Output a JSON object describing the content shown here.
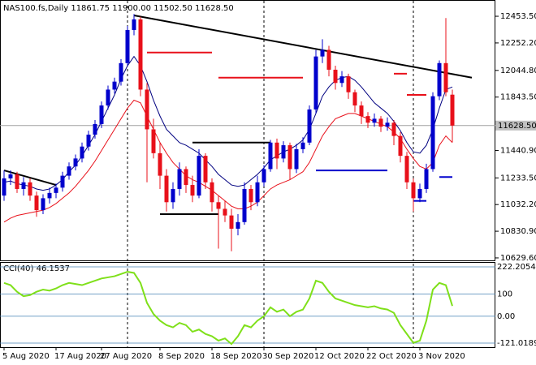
{
  "chart_data": {
    "type": "candlestick",
    "header": "NAS100.fs,Daily  11861.75 11900.00 11502.50 11628.50",
    "categories": [
      "5 Aug 2020",
      null,
      null,
      null,
      null,
      null,
      null,
      null,
      "17 Aug 2020",
      null,
      null,
      null,
      null,
      null,
      null,
      "27 Aug 2020",
      null,
      null,
      null,
      null,
      null,
      null,
      null,
      null,
      "8 Sep 2020",
      null,
      null,
      null,
      null,
      null,
      null,
      null,
      "18 Sep 2020",
      null,
      null,
      null,
      null,
      null,
      null,
      null,
      "30 Sep 2020",
      null,
      null,
      null,
      null,
      null,
      null,
      null,
      "12 Oct 2020",
      null,
      null,
      null,
      null,
      null,
      null,
      null,
      "22 Oct 2020",
      null,
      null,
      null,
      null,
      null,
      null,
      null,
      "3 Nov 2020",
      null,
      null,
      null,
      null,
      null
    ],
    "open": [
      11100,
      11230,
      11260,
      11150,
      11200,
      11100,
      10990,
      11080,
      11120,
      11160,
      11250,
      11320,
      11380,
      11470,
      11560,
      11640,
      11780,
      11900,
      11960,
      12100,
      12350,
      12430,
      11900,
      11600,
      11420,
      11250,
      11050,
      11150,
      11300,
      11180,
      11100,
      11400,
      11200,
      11050,
      11000,
      10950,
      10850,
      10900,
      11150,
      11050,
      11200,
      11300,
      11500,
      11380,
      11480,
      11300,
      11450,
      11500,
      11750,
      12150,
      12200,
      12050,
      11950,
      12000,
      11880,
      11780,
      11700,
      11650,
      11680,
      11620,
      11650,
      11550,
      11400,
      11200,
      11080,
      11150,
      11300,
      11850,
      12100,
      11861.75
    ],
    "high": [
      11290,
      11290,
      11280,
      11240,
      11230,
      11130,
      11110,
      11160,
      11190,
      11280,
      11350,
      11410,
      11500,
      11590,
      11670,
      11810,
      11930,
      11990,
      12130,
      12380,
      12470,
      12450,
      11950,
      11680,
      11500,
      11300,
      11200,
      11350,
      11320,
      11250,
      11450,
      11420,
      11230,
      11100,
      11060,
      11000,
      10960,
      11200,
      11180,
      11250,
      11330,
      11520,
      11530,
      11510,
      11500,
      11490,
      11540,
      11780,
      12200,
      12280,
      12230,
      12080,
      12040,
      12020,
      11900,
      11810,
      11730,
      11720,
      11700,
      11690,
      11670,
      11580,
      11430,
      11230,
      11190,
      11340,
      11880,
      12120,
      12440,
      11900
    ],
    "low": [
      11060,
      11180,
      11120,
      11100,
      11060,
      10940,
      10960,
      11040,
      11080,
      11130,
      11220,
      11290,
      11350,
      11440,
      11530,
      11610,
      11750,
      11870,
      11930,
      12080,
      12310,
      11850,
      11200,
      11380,
      11150,
      10980,
      11000,
      11100,
      11120,
      11050,
      11080,
      11150,
      10980,
      10700,
      10900,
      10680,
      10800,
      10880,
      10990,
      11020,
      11170,
      11280,
      11300,
      11350,
      11220,
      11270,
      11420,
      11480,
      11720,
      12100,
      12000,
      11900,
      11920,
      11830,
      11730,
      11640,
      11610,
      11620,
      11580,
      11590,
      11480,
      11350,
      11150,
      10980,
      11050,
      11120,
      11280,
      11820,
      11850,
      11502.5
    ],
    "close": [
      11230,
      11260,
      11150,
      11200,
      11100,
      10990,
      11080,
      11120,
      11160,
      11250,
      11320,
      11380,
      11470,
      11560,
      11640,
      11780,
      11900,
      11960,
      12100,
      12350,
      12430,
      11900,
      11600,
      11420,
      11250,
      11050,
      11150,
      11300,
      11180,
      11100,
      11400,
      11200,
      11050,
      11000,
      10950,
      10850,
      10900,
      11150,
      11050,
      11200,
      11300,
      11500,
      11380,
      11480,
      11300,
      11450,
      11500,
      11750,
      12150,
      12200,
      12050,
      11950,
      12000,
      11880,
      11780,
      11700,
      11650,
      11680,
      11620,
      11650,
      11550,
      11400,
      11200,
      11080,
      11150,
      11300,
      11850,
      12100,
      11880,
      11628.5
    ],
    "up_color": "#0000cc",
    "down_color": "#e8101a",
    "overlays": [
      {
        "color": "#000080",
        "values": [
          11200,
          11210,
          11190,
          11180,
          11170,
          11150,
          11140,
          11150,
          11180,
          11220,
          11280,
          11330,
          11400,
          11480,
          11560,
          11660,
          11760,
          11860,
          11980,
          12080,
          12150,
          12080,
          11960,
          11820,
          11700,
          11600,
          11550,
          11500,
          11480,
          11450,
          11420,
          11370,
          11320,
          11260,
          11220,
          11180,
          11170,
          11180,
          11220,
          11260,
          11310,
          11370,
          11400,
          11430,
          11450,
          11480,
          11520,
          11600,
          11720,
          11850,
          11920,
          11970,
          11990,
          12000,
          11970,
          11920,
          11860,
          11800,
          11760,
          11720,
          11660,
          11590,
          11500,
          11430,
          11420,
          11480,
          11600,
          11760,
          11900,
          11920
        ]
      },
      {
        "color": "#e8101a",
        "values": [
          10900,
          10930,
          10950,
          10960,
          10970,
          10980,
          10990,
          11010,
          11040,
          11080,
          11120,
          11170,
          11230,
          11290,
          11360,
          11440,
          11520,
          11600,
          11680,
          11760,
          11820,
          11800,
          11700,
          11600,
          11500,
          11420,
          11350,
          11300,
          11250,
          11220,
          11200,
          11170,
          11140,
          11100,
          11060,
          11020,
          11000,
          11000,
          11020,
          11050,
          11100,
          11150,
          11180,
          11200,
          11220,
          11250,
          11280,
          11350,
          11450,
          11550,
          11620,
          11680,
          11700,
          11720,
          11720,
          11700,
          11680,
          11660,
          11640,
          11620,
          11580,
          11530,
          11450,
          11380,
          11320,
          11300,
          11350,
          11480,
          11550,
          11500
        ]
      }
    ],
    "lines": [
      {
        "color": "#000000",
        "x": [
          20,
          72
        ],
        "values": [
          12460,
          11990
        ]
      },
      {
        "color": "#000000",
        "x": [
          0,
          8
        ],
        "values": [
          11290,
          11180
        ]
      },
      {
        "color": "#000000",
        "x": [
          29,
          41
        ],
        "values": [
          11500,
          11500
        ]
      },
      {
        "color": "#000000",
        "x": [
          24,
          33
        ],
        "values": [
          10960,
          10960
        ]
      },
      {
        "color": "#e8101a",
        "x": [
          22,
          32
        ],
        "values": [
          12180,
          12180
        ]
      },
      {
        "color": "#e8101a",
        "x": [
          33,
          46
        ],
        "values": [
          11990,
          11990
        ]
      },
      {
        "color": "#e8101a",
        "x": [
          60,
          62
        ],
        "values": [
          12020,
          12020
        ]
      },
      {
        "color": "#e8101a",
        "x": [
          62,
          65
        ],
        "values": [
          11860,
          11860
        ]
      },
      {
        "color": "#0000cc",
        "x": [
          48,
          59
        ],
        "values": [
          11290,
          11290
        ]
      },
      {
        "color": "#0000cc",
        "x": [
          63,
          65
        ],
        "values": [
          11060,
          11060
        ]
      },
      {
        "color": "#0000cc",
        "x": [
          67,
          69
        ],
        "values": [
          11240,
          11240
        ]
      }
    ],
    "separators": [
      19,
      40,
      63
    ],
    "ylim": [
      10611,
      12564
    ],
    "yticks": [
      {
        "value": 12453.5,
        "label": "12453.50"
      },
      {
        "value": 12252.2,
        "label": "12252.20"
      },
      {
        "value": 12044.8,
        "label": "12044.80"
      },
      {
        "value": 11843.5,
        "label": "11843.50"
      },
      {
        "value": 11440.9,
        "label": "11440.90"
      },
      {
        "value": 11233.5,
        "label": "11233.50"
      },
      {
        "value": 11032.2,
        "label": "11032.20"
      },
      {
        "value": 10830.9,
        "label": "10830.90"
      },
      {
        "value": 10629.6,
        "label": "10629.60"
      }
    ],
    "last_price": {
      "value": 11628.5,
      "label": "11628.50"
    },
    "cci": {
      "title": "CCI(40) 46.1537",
      "color": "#7fe01a",
      "values": [
        150,
        140,
        110,
        90,
        95,
        110,
        120,
        115,
        125,
        140,
        150,
        145,
        140,
        150,
        160,
        170,
        175,
        180,
        190,
        200,
        195,
        150,
        60,
        10,
        -20,
        -40,
        -50,
        -30,
        -40,
        -70,
        -60,
        -80,
        -90,
        -110,
        -100,
        -125,
        -90,
        -40,
        -50,
        -20,
        0,
        40,
        20,
        30,
        0,
        20,
        30,
        80,
        160,
        150,
        110,
        80,
        70,
        60,
        50,
        45,
        40,
        45,
        35,
        30,
        15,
        -40,
        -80,
        -120,
        -110,
        -20,
        120,
        150,
        140,
        46.1537
      ],
      "ylim": [
        -139.3,
        240.5
      ],
      "yticks": [
        {
          "value": 222.2054,
          "label": "222.2054"
        },
        100,
        {
          "value": 0,
          "label": "0.00"
        },
        {
          "value": -121.0189,
          "label": "-121.0189"
        }
      ]
    }
  }
}
